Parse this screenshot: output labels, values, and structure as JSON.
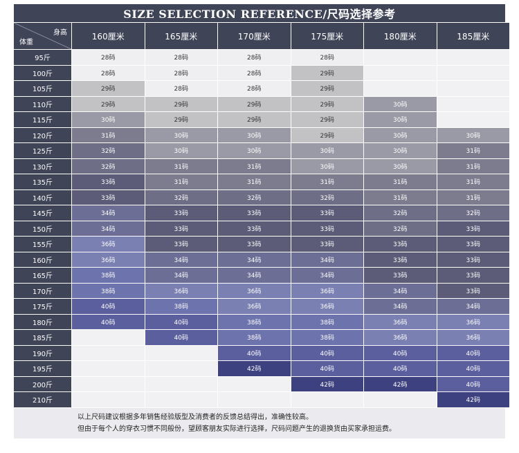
{
  "title": "SIZE SELECTION REFERENCE/尺码选择参考",
  "corner": {
    "height_label": "身高",
    "weight_label": "体重"
  },
  "heights": [
    "160厘米",
    "165厘米",
    "170厘米",
    "175厘米",
    "180厘米",
    "185厘米"
  ],
  "colors": {
    "header_bg": "#3f4457",
    "size_colors": {
      "28码": "#efeff1",
      "29码": "#c2c2c4",
      "30码": "#9a9aa6",
      "31码": "#7c7c8e",
      "32码": "#6e6e86",
      "33码": "#5c5c78",
      "34码": "#6c6e95",
      "36码": "#7b80b3",
      "38码": "#6d73ad",
      "40码": "#5b5f9e",
      "42码": "#3e4180",
      "": "#f1f1f3"
    }
  },
  "rows": [
    {
      "weight": "95斤",
      "sizes": [
        "28码",
        "28码",
        "28码",
        "28码",
        "",
        ""
      ]
    },
    {
      "weight": "100斤",
      "sizes": [
        "28码",
        "28码",
        "28码",
        "29码",
        "",
        ""
      ]
    },
    {
      "weight": "105斤",
      "sizes": [
        "29码",
        "28码",
        "28码",
        "29码",
        "",
        ""
      ]
    },
    {
      "weight": "110斤",
      "sizes": [
        "29码",
        "29码",
        "29码",
        "29码",
        "30码",
        ""
      ]
    },
    {
      "weight": "115斤",
      "sizes": [
        "30码",
        "29码",
        "29码",
        "29码",
        "30码",
        ""
      ]
    },
    {
      "weight": "120斤",
      "sizes": [
        "31码",
        "30码",
        "30码",
        "29码",
        "30码",
        "30码"
      ]
    },
    {
      "weight": "125斤",
      "sizes": [
        "32码",
        "30码",
        "30码",
        "30码",
        "30码",
        "31码"
      ]
    },
    {
      "weight": "130斤",
      "sizes": [
        "32码",
        "31码",
        "31码",
        "30码",
        "30码",
        "31码"
      ]
    },
    {
      "weight": "135斤",
      "sizes": [
        "33码",
        "31码",
        "31码",
        "31码",
        "31码",
        "31码"
      ]
    },
    {
      "weight": "140斤",
      "sizes": [
        "33码",
        "32码",
        "32码",
        "32码",
        "31码",
        "31码"
      ]
    },
    {
      "weight": "145斤",
      "sizes": [
        "34码",
        "33码",
        "33码",
        "33码",
        "32码",
        "32码"
      ]
    },
    {
      "weight": "150斤",
      "sizes": [
        "34码",
        "33码",
        "33码",
        "33码",
        "32码",
        "33码"
      ]
    },
    {
      "weight": "155斤",
      "sizes": [
        "36码",
        "33码",
        "33码",
        "33码",
        "33码",
        "33码"
      ]
    },
    {
      "weight": "160斤",
      "sizes": [
        "36码",
        "34码",
        "34码",
        "34码",
        "33码",
        "33码"
      ]
    },
    {
      "weight": "165斤",
      "sizes": [
        "38码",
        "34码",
        "34码",
        "34码",
        "33码",
        "33码"
      ]
    },
    {
      "weight": "170斤",
      "sizes": [
        "38码",
        "36码",
        "36码",
        "36码",
        "34码",
        "33码"
      ]
    },
    {
      "weight": "175斤",
      "sizes": [
        "40码",
        "38码",
        "36码",
        "36码",
        "34码",
        "34码"
      ]
    },
    {
      "weight": "180斤",
      "sizes": [
        "40码",
        "40码",
        "38码",
        "38码",
        "36码",
        "36码"
      ]
    },
    {
      "weight": "185斤",
      "sizes": [
        "",
        "40码",
        "38码",
        "38码",
        "36码",
        "36码"
      ]
    },
    {
      "weight": "190斤",
      "sizes": [
        "",
        "",
        "40码",
        "40码",
        "40码",
        "40码"
      ]
    },
    {
      "weight": "195斤",
      "sizes": [
        "",
        "",
        "42码",
        "40码",
        "40码",
        "40码"
      ]
    },
    {
      "weight": "200斤",
      "sizes": [
        "",
        "",
        "",
        "42码",
        "42码",
        "40码"
      ]
    },
    {
      "weight": "210斤",
      "sizes": [
        "",
        "",
        "",
        "",
        "",
        "42码"
      ]
    }
  ],
  "notes": [
    "以上尺码建议根据多年销售经验版型及消费者的反馈总结得出，准确性较高。",
    "但由于每个人的穿衣习惯不同般份，望顾客朋友实际进行选择，尺码问题产生的退换货由买家承担运费。"
  ]
}
